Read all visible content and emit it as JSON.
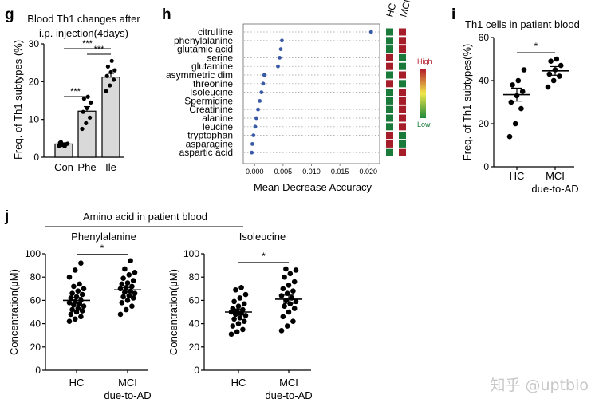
{
  "panels": {
    "g": {
      "letter": "g",
      "title_lines": [
        "Blood Th1 changes after",
        "i.p. injection(4days)"
      ],
      "ylabel": "Freq. of Th1 subtypes (%)"
    },
    "h": {
      "letter": "h",
      "xlabel": "Mean Decrease Accuracy",
      "columns": [
        "HC",
        "MCI"
      ],
      "legend_high": "High",
      "legend_low": "Low"
    },
    "i": {
      "letter": "i",
      "title": "Th1 cells in patient blood",
      "ylabel": "Freq. of Th1 subtypes(%)"
    },
    "j": {
      "letter": "j",
      "title": "Amino acid in patient blood",
      "sub_left": "Phenylalanine",
      "sub_right": "Isoleucine",
      "ylabel": "Concentration(μM)"
    }
  },
  "watermark": "知乎 @uptbio",
  "chart_data": [
    {
      "id": "g",
      "type": "bar",
      "categories": [
        "Con",
        "Phe",
        "Ile"
      ],
      "values": [
        3.5,
        12.2,
        21.2
      ],
      "sem": [
        0.3,
        1.2,
        1.0
      ],
      "points": [
        [
          3.0,
          3.2,
          3.5,
          3.8,
          3.3,
          3.6,
          4.0,
          2.9
        ],
        [
          7.5,
          9.0,
          10.5,
          12.0,
          13.0,
          14.5,
          15.5,
          16.0
        ],
        [
          17.5,
          19.0,
          20.5,
          21.5,
          22.5,
          23.0,
          24.0,
          25.5
        ]
      ],
      "ylim": [
        0,
        30
      ],
      "yticks": [
        "0",
        "10",
        "20",
        "30"
      ],
      "bar_color": "#d9d9d9",
      "significance": [
        {
          "from": 0,
          "to": 1,
          "label": "***"
        },
        {
          "from": 1,
          "to": 2,
          "label": "***"
        },
        {
          "from": 0,
          "to": 2,
          "label": "***"
        }
      ]
    },
    {
      "id": "h",
      "type": "scatter",
      "features": [
        "citrulline",
        "phenylalanine",
        "glutamic acid",
        "serine",
        "glutamine",
        "asymmetric dim",
        "threonine",
        "Isoleucine",
        "Spermidine",
        "Creatinine",
        "alanine",
        "leucine",
        "tryptophan",
        "asparagine",
        "aspartic acid"
      ],
      "values": [
        0.0205,
        0.0048,
        0.0046,
        0.0044,
        0.0041,
        0.0017,
        0.0015,
        0.0012,
        0.0009,
        0.0006,
        0.0003,
        0.0001,
        -0.0002,
        -0.0004,
        -0.0005
      ],
      "xlim": [
        -0.002,
        0.022
      ],
      "xticks": [
        "0.000",
        "0.005",
        "0.010",
        "0.015",
        "0.020"
      ],
      "heatmap_hc": [
        "#1a7a3a",
        "#1a7a3a",
        "#1a7a3a",
        "#a61d2a",
        "#a61d2a",
        "#1a7a3a",
        "#a61d2a",
        "#1a7a3a",
        "#1a7a3a",
        "#1a7a3a",
        "#1a7a3a",
        "#1a7a3a",
        "#a61d2a",
        "#a61d2a",
        "#1a7a3a"
      ],
      "heatmap_mci": [
        "#a61d2a",
        "#a61d2a",
        "#a61d2a",
        "#1a7a3a",
        "#1a7a3a",
        "#a61d2a",
        "#1a7a3a",
        "#a61d2a",
        "#a61d2a",
        "#a61d2a",
        "#a61d2a",
        "#a61d2a",
        "#1a7a3a",
        "#1a7a3a",
        "#a61d2a"
      ],
      "point_color": "#3a5aa8"
    },
    {
      "id": "i",
      "type": "scatter",
      "categories": [
        "HC",
        "MCI\ndue-to-AD"
      ],
      "means": [
        33.5,
        44.5
      ],
      "sem": [
        3.0,
        2.0
      ],
      "points": [
        [
          14,
          20,
          27,
          30,
          33,
          35,
          38,
          40,
          45
        ],
        [
          37,
          40,
          42,
          43,
          45,
          47,
          49,
          50
        ]
      ],
      "ylim": [
        0,
        60
      ],
      "yticks": [
        "0",
        "20",
        "40",
        "60"
      ],
      "significance": "*"
    },
    {
      "id": "j-phe",
      "type": "scatter",
      "categories": [
        "HC",
        "MCI\ndue-to-AD"
      ],
      "means": [
        60,
        69
      ],
      "sem": [
        2.5,
        2.0
      ],
      "points": [
        [
          42,
          44,
          46,
          48,
          50,
          51,
          52,
          53,
          55,
          56,
          57,
          58,
          59,
          60,
          62,
          63,
          65,
          66,
          68,
          70,
          72,
          74,
          80,
          86,
          92
        ],
        [
          48,
          52,
          55,
          58,
          60,
          62,
          63,
          64,
          66,
          67,
          68,
          70,
          71,
          72,
          74,
          75,
          77,
          79,
          82,
          84,
          87,
          94
        ]
      ],
      "ylim": [
        0,
        100
      ],
      "yticks": [
        "0",
        "20",
        "40",
        "60",
        "80",
        "100"
      ],
      "significance": "*"
    },
    {
      "id": "j-ile",
      "type": "scatter",
      "categories": [
        "HC",
        "MCI\ndue-to-AD"
      ],
      "means": [
        50,
        61
      ],
      "sem": [
        2.5,
        3.5
      ],
      "points": [
        [
          31,
          33,
          35,
          38,
          40,
          42,
          44,
          45,
          47,
          48,
          49,
          50,
          51,
          52,
          53,
          55,
          57,
          59,
          62,
          65,
          69,
          71
        ],
        [
          34,
          38,
          42,
          46,
          50,
          53,
          55,
          57,
          59,
          60,
          62,
          64,
          66,
          68,
          70,
          73,
          76,
          80,
          83,
          86,
          87
        ]
      ],
      "ylim": [
        0,
        100
      ],
      "yticks": [
        "0",
        "20",
        "40",
        "60",
        "80",
        "100"
      ],
      "significance": "*"
    }
  ]
}
